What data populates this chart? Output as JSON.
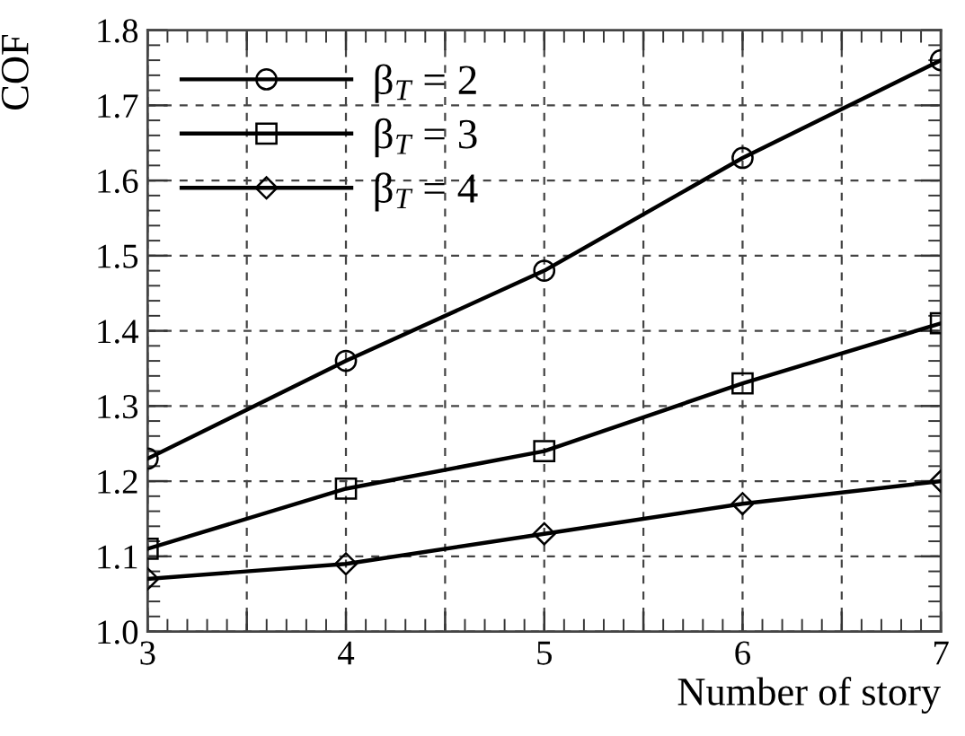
{
  "chart_data": {
    "type": "line",
    "xlabel": "Number of story",
    "ylabel": "COF",
    "x": [
      3,
      4,
      5,
      6,
      7
    ],
    "series": [
      {
        "name": "β$_{T}$ = 2",
        "color": "#000000",
        "marker": "circle",
        "values": [
          1.23,
          1.36,
          1.48,
          1.63,
          1.76
        ]
      },
      {
        "name": "β$_{T}$ = 3",
        "color": "#000000",
        "marker": "square",
        "values": [
          1.11,
          1.19,
          1.24,
          1.33,
          1.41
        ]
      },
      {
        "name": "β$_{T}$ = 4",
        "color": "#000000",
        "marker": "diamond",
        "values": [
          1.07,
          1.09,
          1.13,
          1.17,
          1.2
        ]
      }
    ],
    "xlim": [
      3,
      7
    ],
    "xticks": [
      3,
      {
        "value": 3.5,
        "label": null
      },
      4,
      {
        "value": 4.5,
        "label": null
      },
      5,
      {
        "value": 5.5,
        "label": null
      },
      6,
      {
        "value": 6.5,
        "label": null
      },
      7
    ],
    "ylim": [
      1,
      1.8
    ],
    "yticks": [
      {
        "value": 1,
        "label": "1.0"
      },
      1.1,
      1.2,
      1.3,
      1.4,
      1.5,
      1.6,
      1.7,
      1.8
    ],
    "grid": true,
    "legend": "top left",
    "line_style": "solid"
  }
}
